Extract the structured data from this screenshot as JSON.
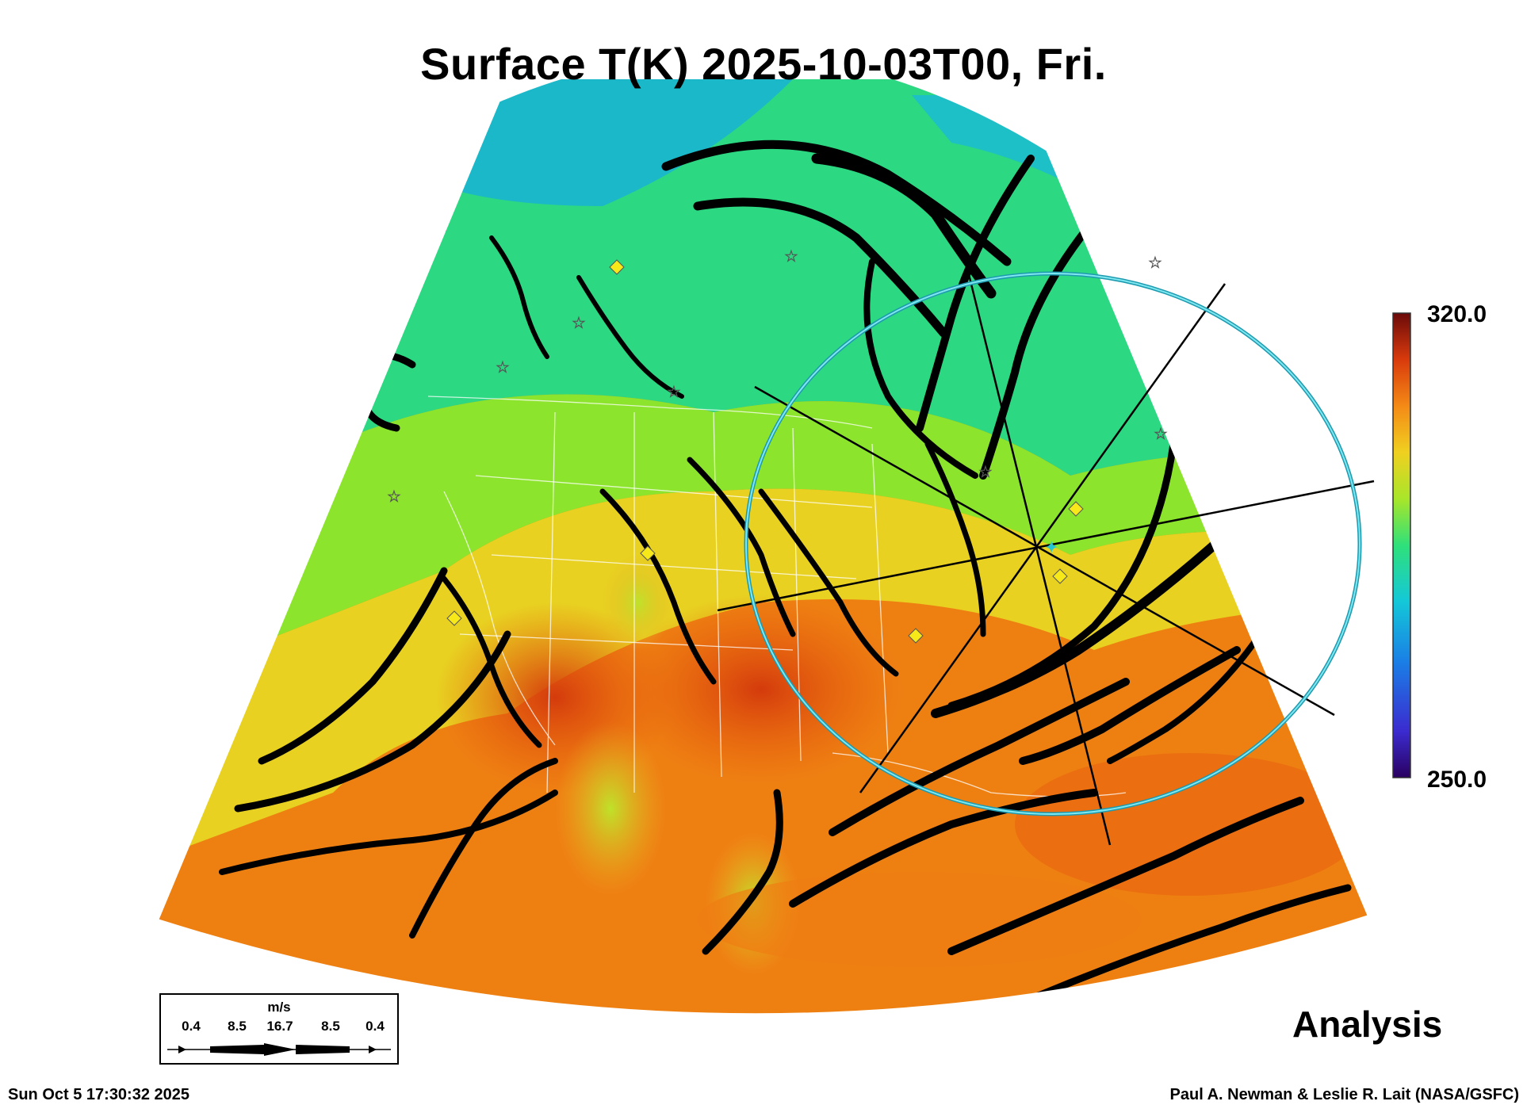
{
  "title": "Surface T(K) 2025-10-03T00, Fri.",
  "colorbar": {
    "max_label": "320.0",
    "min_label": "250.0"
  },
  "watermark": "Analysis",
  "timestamp": "Sun Oct  5 17:30:32 2025",
  "credit": "Paul A. Newman & Leslie R. Lait (NASA/GSFC)",
  "wind_legend": {
    "units": "m/s",
    "ticks": [
      "0.4",
      "8.5",
      "16.7",
      "8.5",
      "0.4"
    ]
  },
  "colors": {
    "ring": "#2ab7c6",
    "marker_diamond": "#f7e81a",
    "streamline": "#000000"
  }
}
